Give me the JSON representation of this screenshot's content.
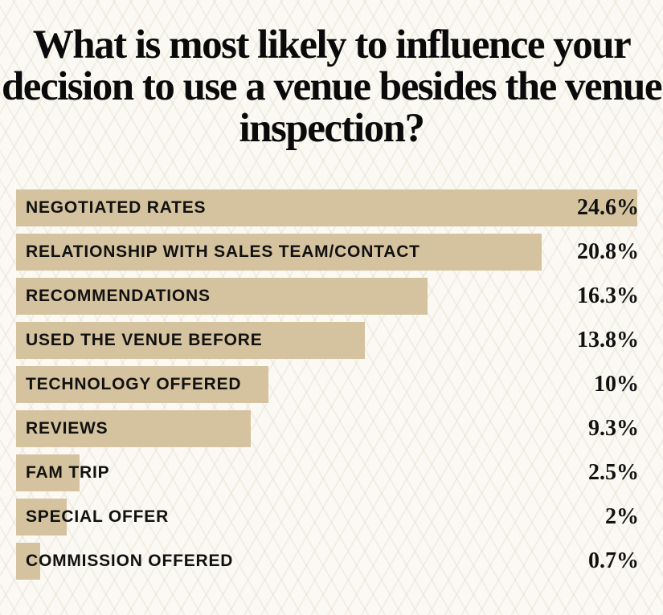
{
  "colors": {
    "bar": "#d5c39f",
    "background": "#fbf9f4",
    "text": "#111111"
  },
  "chart_data": {
    "type": "bar",
    "orientation": "horizontal",
    "title": "What is most likely to influence your decision to use a venue besides the venue inspection?",
    "categories": [
      "NEGOTIATED RATES",
      "RELATIONSHIP WITH SALES TEAM/CONTACT",
      "RECOMMENDATIONS",
      "USED THE VENUE BEFORE",
      "TECHNOLOGY OFFERED",
      "REVIEWS",
      "FAM TRIP",
      "SPECIAL OFFER",
      "COMMISSION OFFERED"
    ],
    "values": [
      24.6,
      20.8,
      16.3,
      13.8,
      10,
      9.3,
      2.5,
      2,
      0.7
    ],
    "value_labels": [
      "24.6%",
      "20.8%",
      "16.3%",
      "13.8%",
      "10%",
      "9.3%",
      "2.5%",
      "2%",
      "0.7%"
    ],
    "unit": "%",
    "xlim": [
      0,
      24.6
    ],
    "grid": false,
    "legend": "none"
  }
}
